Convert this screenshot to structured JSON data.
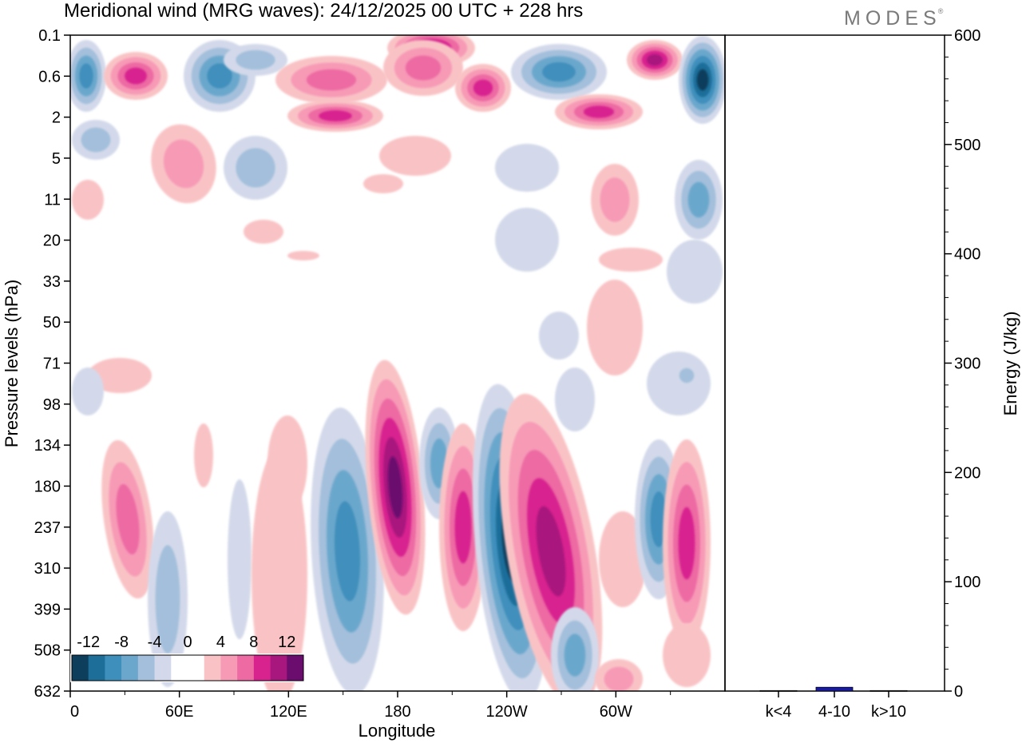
{
  "header": {
    "title": "Meridional wind (MRG waves):  24/12/2025  00 UTC  + 228 hrs",
    "logo_text": "MODES",
    "logo_mark": "®"
  },
  "colors": {
    "neg": [
      "#0d3e5c",
      "#1e6e9a",
      "#3f8fbc",
      "#6ba7cc",
      "#a3bfdb",
      "#d3d9ea"
    ],
    "zero": "#ffffff",
    "pos": [
      "#f9c3c5",
      "#f79ab6",
      "#ed6aa3",
      "#d8238f",
      "#a8177e",
      "#6a0d6e"
    ],
    "energy_bar": "#1a1aa8"
  },
  "chart_data": [
    {
      "type": "heatmap",
      "title": "Meridional wind (MRG waves)",
      "xlabel": "Longitude",
      "ylabel": "Pressure levels (hPa)",
      "x_ticks": [
        "0",
        "60E",
        "120E",
        "180",
        "120W",
        "60W"
      ],
      "x_range_deg": [
        0,
        360
      ],
      "y_ticks": [
        "0.1",
        "0.6",
        "2",
        "5",
        "11",
        "20",
        "33",
        "50",
        "71",
        "98",
        "134",
        "180",
        "237",
        "310",
        "399",
        "508",
        "632"
      ],
      "colorbar": {
        "labels": [
          "-12",
          "-8",
          "-4",
          "0",
          "4",
          "8",
          "12"
        ],
        "levels": [
          -14,
          -12,
          -10,
          -8,
          -6,
          -4,
          -2,
          2,
          4,
          6,
          8,
          10,
          12,
          14
        ]
      }
    },
    {
      "type": "bar",
      "categories": [
        "k<4",
        "4-10",
        "k>10"
      ],
      "values": [
        0.5,
        3.5,
        0.5
      ],
      "ylabel": "Energy (J/kg)",
      "ylim": [
        0,
        600
      ],
      "y_ticks": [
        "0",
        "100",
        "200",
        "300",
        "400",
        "500",
        "600"
      ]
    }
  ]
}
